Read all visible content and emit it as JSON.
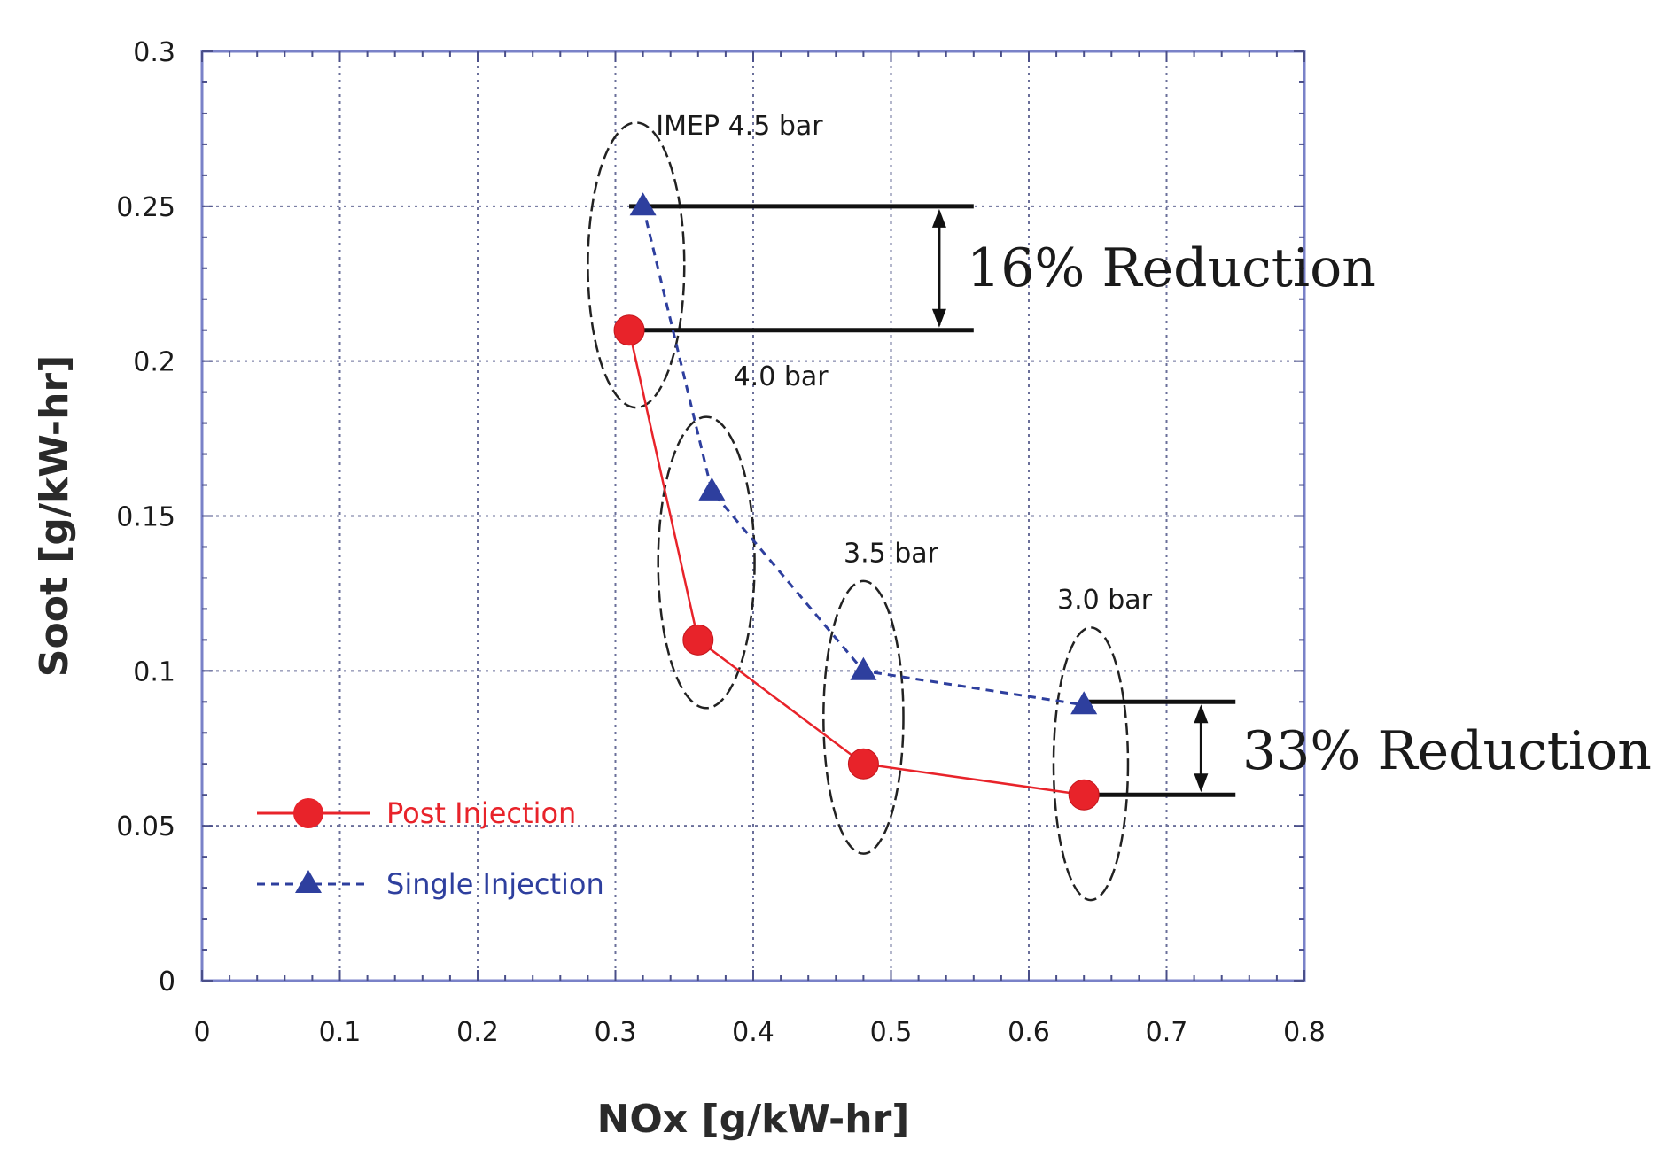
{
  "chart_data": {
    "type": "line",
    "xlabel": "NOx [g/kW-hr]",
    "ylabel": "Soot [g/kW-hr]",
    "xlim": [
      0,
      0.8
    ],
    "ylim": [
      0,
      0.3
    ],
    "x_ticks": [
      0,
      0.1,
      0.2,
      0.3,
      0.4,
      0.5,
      0.6,
      0.7,
      0.8
    ],
    "x_tick_labels": [
      "0",
      "0.1",
      "0.2",
      "0.3",
      "0.4",
      "0.5",
      "0.6",
      "0.7",
      "0.8"
    ],
    "y_ticks": [
      0,
      0.05,
      0.1,
      0.15,
      0.2,
      0.25,
      0.3
    ],
    "y_tick_labels": [
      "0",
      "0.05",
      "0.1",
      "0.15",
      "0.2",
      "0.25",
      "0.3"
    ],
    "grid": true,
    "legend_position": "bottom-left",
    "series": [
      {
        "name": "Post Injection",
        "color": "#e8232a",
        "line_style": "solid",
        "marker": "circle",
        "x": [
          0.31,
          0.36,
          0.48,
          0.64
        ],
        "y": [
          0.21,
          0.11,
          0.07,
          0.06
        ]
      },
      {
        "name": "Single Injection",
        "color": "#2e3f9e",
        "line_style": "dashed",
        "marker": "triangle",
        "x": [
          0.32,
          0.37,
          0.48,
          0.64
        ],
        "y": [
          0.25,
          0.158,
          0.1,
          0.089
        ]
      }
    ],
    "group_labels": [
      {
        "text": "IMEP 4.5 bar",
        "x": 0.39,
        "y": 0.276
      },
      {
        "text": "4.0 bar",
        "x": 0.42,
        "y": 0.195
      },
      {
        "text": "3.5 bar",
        "x": 0.5,
        "y": 0.138
      },
      {
        "text": "3.0 bar",
        "x": 0.655,
        "y": 0.123
      }
    ],
    "ellipses": [
      {
        "cx": 0.315,
        "cy": 0.231,
        "rx": 0.035,
        "ry": 0.046
      },
      {
        "cx": 0.366,
        "cy": 0.135,
        "rx": 0.035,
        "ry": 0.047
      },
      {
        "cx": 0.48,
        "cy": 0.085,
        "rx": 0.029,
        "ry": 0.044
      },
      {
        "cx": 0.645,
        "cy": 0.07,
        "rx": 0.027,
        "ry": 0.044
      }
    ],
    "annotations": [
      {
        "text": "16% Reduction",
        "x_start": 0.31,
        "x_end": 0.56,
        "y_top": 0.25,
        "y_bottom": 0.21,
        "arrow_x": 0.535,
        "label_x": 0.555,
        "label_y": 0.23
      },
      {
        "text": "33% Reduction",
        "x_start": 0.64,
        "x_end": 0.75,
        "y_top": 0.09,
        "y_bottom": 0.06,
        "arrow_x": 0.725,
        "label_x": 0.755,
        "label_y": 0.074
      }
    ],
    "legend": [
      {
        "label": "Post Injection",
        "series": 0
      },
      {
        "label": "Single Injection",
        "series": 1
      }
    ]
  }
}
